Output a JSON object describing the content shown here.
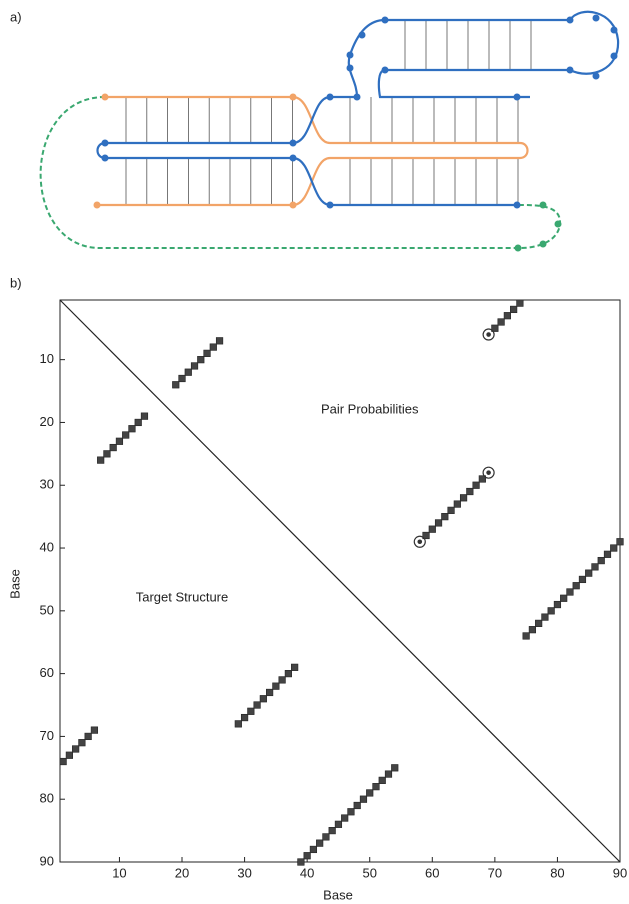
{
  "panel_a": {
    "label": "a)"
  },
  "chart_data": {
    "type": "scatter",
    "label": "b)",
    "xlabel": "Base",
    "ylabel": "Base",
    "annotations": [
      {
        "text": "Pair Probabilities",
        "x": 50,
        "y": 18
      },
      {
        "text": "Target Structure",
        "x": 20,
        "y": 48
      }
    ],
    "xlim": [
      0.5,
      90
    ],
    "ylim": [
      0.5,
      90
    ],
    "y_inverted": true,
    "xticks": [
      10,
      20,
      30,
      40,
      50,
      60,
      70,
      80,
      90
    ],
    "yticks": [
      10,
      20,
      30,
      40,
      50,
      60,
      70,
      80,
      90
    ],
    "series": [
      {
        "marker": "square",
        "color": "#444444",
        "x": [
          1,
          2,
          3,
          4,
          5,
          6,
          7,
          8,
          9,
          10,
          11,
          12,
          13,
          14,
          29,
          30,
          31,
          32,
          33,
          34,
          35,
          36,
          37,
          38,
          39,
          40,
          41,
          42,
          43,
          44,
          45,
          46,
          47,
          48,
          49,
          50,
          51,
          52,
          53,
          54,
          19,
          20,
          21,
          22,
          23,
          24,
          25,
          26,
          59,
          60,
          61,
          62,
          63,
          64,
          65,
          66,
          67,
          68,
          75,
          76,
          77,
          78,
          79,
          80,
          81,
          82,
          83,
          84,
          85,
          86,
          87,
          88,
          89,
          90,
          70,
          71,
          72,
          73,
          74
        ],
        "y": [
          74,
          73,
          72,
          71,
          70,
          69,
          26,
          25,
          24,
          23,
          22,
          21,
          20,
          19,
          68,
          67,
          66,
          65,
          64,
          63,
          62,
          61,
          60,
          59,
          90,
          89,
          88,
          87,
          86,
          85,
          84,
          83,
          82,
          81,
          80,
          79,
          78,
          77,
          76,
          75,
          14,
          13,
          12,
          11,
          10,
          9,
          8,
          7,
          38,
          37,
          36,
          35,
          34,
          33,
          32,
          31,
          30,
          29,
          54,
          53,
          52,
          51,
          50,
          49,
          48,
          47,
          46,
          45,
          44,
          43,
          42,
          41,
          40,
          39,
          5,
          4,
          3,
          2,
          1
        ]
      },
      {
        "marker": "circle",
        "color": "#333333",
        "x": [
          69,
          58,
          69
        ],
        "y": [
          6,
          39,
          28
        ]
      }
    ]
  }
}
